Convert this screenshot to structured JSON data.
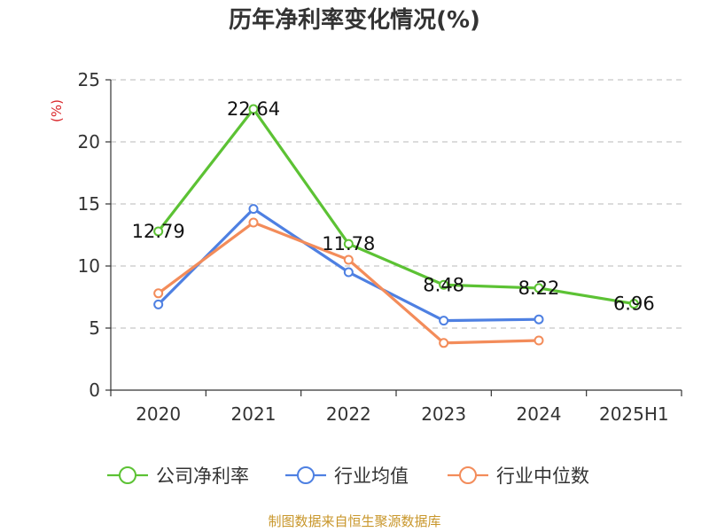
{
  "chart_data": {
    "type": "line",
    "title": "历年净利率变化情况(%)",
    "ylabel": "(%)",
    "categories": [
      "2020",
      "2021",
      "2022",
      "2023",
      "2024",
      "2025H1"
    ],
    "ylim": [
      0,
      25
    ],
    "yticks": [
      0,
      5,
      10,
      15,
      20,
      25
    ],
    "grid": true,
    "legend_position": "bottom",
    "series": [
      {
        "name": "公司净利率",
        "color": "#5cc234",
        "values": [
          12.79,
          22.64,
          11.78,
          8.48,
          8.22,
          6.96
        ],
        "labels": [
          "12.79",
          "22.64",
          "11.78",
          "8.48",
          "8.22",
          "6.96"
        ]
      },
      {
        "name": "行业均值",
        "color": "#4e80e2",
        "values": [
          6.9,
          14.6,
          9.5,
          5.6,
          5.7,
          null
        ]
      },
      {
        "name": "行业中位数",
        "color": "#f38c5a",
        "values": [
          7.8,
          13.5,
          10.5,
          3.8,
          4.0,
          null
        ]
      }
    ]
  },
  "source": "制图数据来自恒生聚源数据库"
}
